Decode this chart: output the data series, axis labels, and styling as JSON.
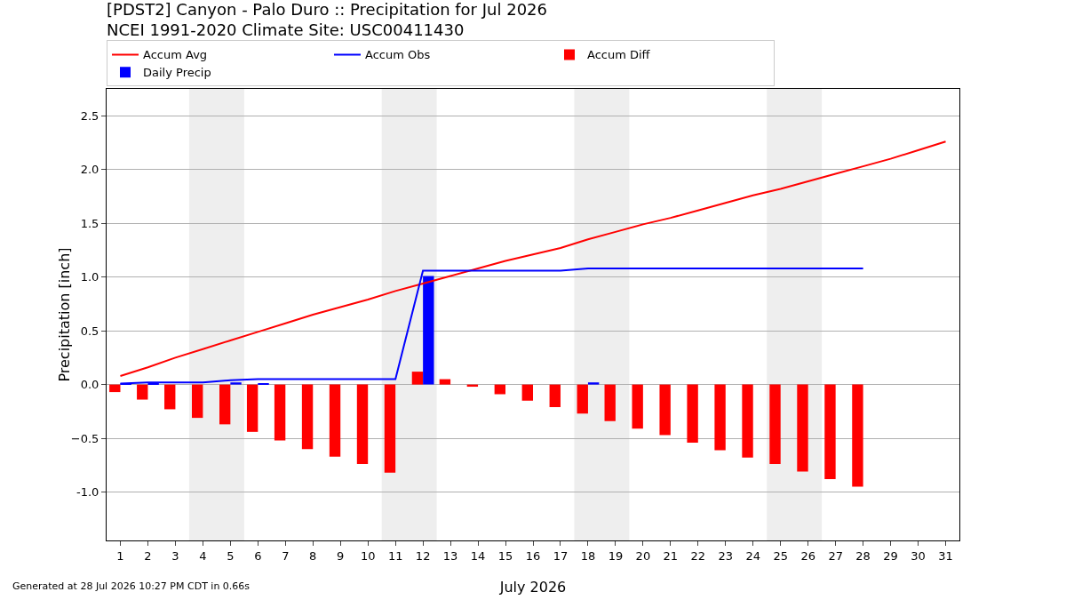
{
  "chart_data": {
    "type": "bar",
    "title": "[PDST2] Canyon - Palo Duro :: Precipitation for Jul 2026",
    "subtitle": "NCEI 1991-2020 Climate Site: USC00411430",
    "xlabel": "July 2026",
    "ylabel": "Precipitation [inch]",
    "x": [
      1,
      2,
      3,
      4,
      5,
      6,
      7,
      8,
      9,
      10,
      11,
      12,
      13,
      14,
      15,
      16,
      17,
      18,
      19,
      20,
      21,
      22,
      23,
      24,
      25,
      26,
      27,
      28,
      29,
      30,
      31
    ],
    "series": [
      {
        "name": "Accum Avg",
        "type": "line",
        "color": "#ff0000",
        "values": [
          0.08,
          0.16,
          0.25,
          0.33,
          0.41,
          0.49,
          0.57,
          0.65,
          0.72,
          0.79,
          0.87,
          0.94,
          1.01,
          1.08,
          1.15,
          1.21,
          1.27,
          1.35,
          1.42,
          1.49,
          1.55,
          1.62,
          1.69,
          1.76,
          1.82,
          1.89,
          1.96,
          2.03,
          2.1,
          2.18,
          2.26
        ]
      },
      {
        "name": "Accum Obs",
        "type": "line",
        "color": "#0000ff",
        "values": [
          0.01,
          0.02,
          0.02,
          0.02,
          0.04,
          0.05,
          0.05,
          0.05,
          0.05,
          0.05,
          0.05,
          1.06,
          1.06,
          1.06,
          1.06,
          1.06,
          1.06,
          1.08,
          1.08,
          1.08,
          1.08,
          1.08,
          1.08,
          1.08,
          1.08,
          1.08,
          1.08,
          1.08,
          null,
          null,
          null
        ]
      },
      {
        "name": "Accum Diff",
        "color": "#ff0000",
        "values": [
          -0.07,
          -0.14,
          -0.23,
          -0.31,
          -0.37,
          -0.44,
          -0.52,
          -0.6,
          -0.67,
          -0.74,
          -0.82,
          0.12,
          0.05,
          -0.02,
          -0.09,
          -0.15,
          -0.21,
          -0.27,
          -0.34,
          -0.41,
          -0.47,
          -0.54,
          -0.61,
          -0.68,
          -0.74,
          -0.81,
          -0.88,
          -0.95,
          null,
          null,
          null
        ]
      },
      {
        "name": "Daily Precip",
        "color": "#0000ff",
        "values": [
          0.01,
          0.01,
          0,
          0,
          0.02,
          0.01,
          0,
          0,
          0,
          0,
          0,
          1.01,
          0,
          0,
          0,
          0,
          0,
          0.02,
          0,
          0,
          0,
          0,
          0,
          0,
          0,
          0,
          0,
          0,
          null,
          null,
          null
        ]
      }
    ],
    "bands": [
      {
        "axis": "x",
        "from": 3.5,
        "to": 5.5,
        "color": "#eeeeee"
      },
      {
        "axis": "x",
        "from": 10.5,
        "to": 12.5,
        "color": "#eeeeee"
      },
      {
        "axis": "x",
        "from": 17.5,
        "to": 19.5,
        "color": "#eeeeee"
      },
      {
        "axis": "x",
        "from": 24.5,
        "to": 26.5,
        "color": "#eeeeee"
      }
    ],
    "xlim": [
      0.5,
      31.5
    ],
    "xticks": [
      1,
      2,
      3,
      4,
      5,
      6,
      7,
      8,
      9,
      10,
      11,
      12,
      13,
      14,
      15,
      16,
      17,
      18,
      19,
      20,
      21,
      22,
      23,
      24,
      25,
      26,
      27,
      28,
      29,
      30,
      31
    ],
    "ylim": [
      -1.45,
      2.75
    ],
    "yticks": [
      {
        "value": -1,
        "label": "-1.0"
      },
      {
        "value": -0.5,
        "label": "−0.5"
      },
      {
        "value": 0,
        "label": "0.0"
      },
      {
        "value": 0.5,
        "label": "0.5"
      },
      {
        "value": 1,
        "label": "1.0"
      },
      {
        "value": 1.5,
        "label": "1.5"
      },
      {
        "value": 2,
        "label": "2.0"
      },
      {
        "value": 2.5,
        "label": "2.5"
      }
    ],
    "grid": "y",
    "legend": "top",
    "annotations": [
      "Generated at 28 Jul 2026 10:27 PM CDT in 0.66s"
    ]
  }
}
